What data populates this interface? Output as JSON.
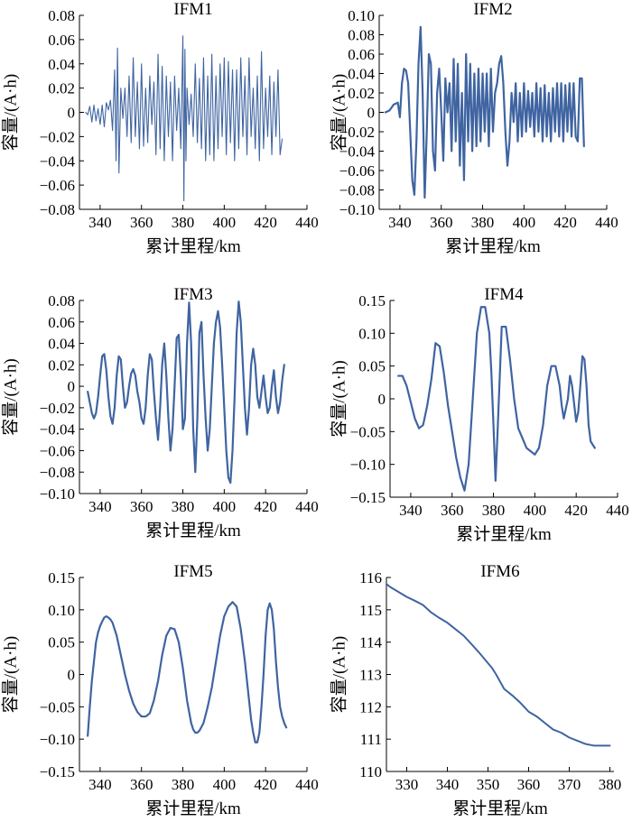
{
  "charts": [
    {
      "type": "line",
      "title": "IFM1",
      "xlabel": "累计里程/km",
      "ylabel": "容量/(A·h)",
      "xlim": [
        330,
        440
      ],
      "ylim": [
        -0.08,
        0.08
      ],
      "xticks": [
        340,
        360,
        380,
        400,
        420,
        440
      ],
      "yticks": [
        0.08,
        0.06,
        0.04,
        0.02,
        0,
        -0.02,
        -0.04,
        -0.06,
        -0.08
      ],
      "xtick_labels": [
        "340",
        "360",
        "380",
        "400",
        "420",
        "440"
      ],
      "ytick_labels": [
        "0.08",
        "0.06",
        "0.04",
        "0.02",
        "0",
        "−0.02",
        "−0.04",
        "−0.06",
        "−0.08"
      ],
      "line_color": "#3f64a1",
      "line_width": 1.1,
      "x": [
        333,
        334,
        335,
        336,
        337,
        338,
        339,
        340,
        341,
        342,
        343,
        344,
        345,
        346,
        347,
        347.7,
        348.4,
        349.1,
        350,
        351,
        352,
        353,
        354,
        355,
        356,
        357,
        358,
        359,
        360,
        361,
        362,
        363,
        364,
        365,
        366,
        367,
        368,
        369,
        370,
        371,
        372,
        373,
        374,
        375,
        376,
        377,
        378,
        379,
        380,
        380.5,
        381,
        381.5,
        382,
        383,
        384,
        385,
        386,
        387,
        388,
        389,
        390,
        391,
        392,
        393,
        394,
        395,
        396,
        397,
        398,
        399,
        400,
        401,
        402,
        403,
        404,
        405,
        406,
        407,
        408,
        409,
        410,
        411,
        412,
        413,
        414,
        415,
        416,
        417,
        418,
        419,
        420,
        421,
        422,
        423,
        424,
        425,
        426,
        427,
        428
      ],
      "y": [
        0,
        -0.002,
        0.005,
        -0.008,
        0.006,
        -0.007,
        0.003,
        -0.01,
        0.006,
        -0.012,
        0.008,
        0.002,
        0.01,
        -0.015,
        0.035,
        -0.04,
        0.053,
        -0.05,
        0.02,
        -0.005,
        0.02,
        -0.02,
        0.03,
        -0.025,
        0.045,
        -0.02,
        0.025,
        -0.03,
        0.04,
        -0.028,
        0.02,
        -0.025,
        0.03,
        -0.01,
        0.025,
        -0.035,
        0.048,
        -0.03,
        0.038,
        -0.04,
        0.03,
        -0.02,
        0.025,
        -0.04,
        0.03,
        -0.015,
        0.02,
        -0.03,
        0.063,
        -0.073,
        0.052,
        -0.04,
        0.02,
        -0.01,
        0.015,
        -0.02,
        0.04,
        -0.025,
        0.028,
        -0.03,
        0.045,
        -0.04,
        0.03,
        -0.035,
        0.048,
        -0.04,
        0.03,
        -0.03,
        0.04,
        -0.02,
        0.045,
        -0.035,
        0.042,
        -0.025,
        0.035,
        -0.04,
        0.035,
        -0.03,
        0.045,
        -0.02,
        0.03,
        -0.035,
        0.045,
        -0.02,
        0.02,
        -0.03,
        0.03,
        -0.04,
        0.05,
        -0.03,
        0.02,
        -0.02,
        0.03,
        -0.035,
        0.025,
        -0.02,
        0.035,
        -0.035,
        -0.022
      ]
    },
    {
      "type": "line",
      "title": "IFM2",
      "xlabel": "累计里程/km",
      "ylabel": "容量/(A·h)",
      "xlim": [
        330,
        440
      ],
      "ylim": [
        -0.1,
        0.1
      ],
      "xticks": [
        340,
        360,
        380,
        400,
        420,
        440
      ],
      "yticks": [
        0.1,
        0.08,
        0.06,
        0.04,
        0.02,
        0,
        -0.02,
        -0.04,
        -0.06,
        -0.08,
        -0.1
      ],
      "xtick_labels": [
        "340",
        "360",
        "380",
        "400",
        "420",
        "440"
      ],
      "ytick_labels": [
        "0.10",
        "0.08",
        "0.06",
        "0.04",
        "0.02",
        "0",
        "−0.02",
        "−0.04",
        "−0.06",
        "−0.08",
        "−0.10"
      ],
      "line_color": "#3f64a1",
      "line_width": 2.2,
      "x": [
        333,
        335,
        337,
        339,
        340,
        341,
        342,
        343,
        344,
        345,
        346,
        347,
        348,
        349,
        350,
        351,
        352,
        353,
        354,
        355,
        356,
        357,
        358,
        359,
        360,
        361,
        362,
        363,
        364,
        365,
        366,
        367,
        368,
        369,
        370,
        371,
        372,
        373,
        374,
        375,
        376,
        377,
        378,
        379,
        380,
        381,
        382,
        383,
        384,
        385,
        386,
        387,
        388,
        389,
        390,
        391,
        392,
        393,
        394,
        395,
        396,
        397,
        398,
        399,
        400,
        401,
        402,
        403,
        404,
        405,
        406,
        407,
        408,
        409,
        410,
        411,
        412,
        413,
        414,
        415,
        416,
        417,
        418,
        419,
        420,
        421,
        422,
        423,
        424,
        425,
        426,
        427,
        428,
        429
      ],
      "y": [
        0,
        0.002,
        0.008,
        0.01,
        -0.005,
        0.03,
        0.045,
        0.043,
        0.03,
        -0.02,
        -0.07,
        -0.085,
        -0.03,
        0.05,
        0.088,
        0.02,
        -0.088,
        -0.02,
        0.06,
        0.05,
        -0.04,
        -0.06,
        0.02,
        0.045,
        0.0,
        -0.05,
        0.035,
        0.0,
        0.03,
        -0.04,
        0.055,
        -0.03,
        0.05,
        -0.055,
        0.02,
        -0.07,
        0.06,
        -0.03,
        0.05,
        -0.04,
        0.04,
        -0.035,
        0.045,
        -0.03,
        0.04,
        -0.02,
        0.04,
        -0.035,
        0.045,
        -0.02,
        0.02,
        0.03,
        0.05,
        0.058,
        0.03,
        -0.02,
        -0.055,
        -0.03,
        0.02,
        -0.01,
        0.03,
        -0.03,
        0.02,
        -0.025,
        0.03,
        -0.02,
        0.022,
        -0.015,
        0.02,
        -0.025,
        0.03,
        -0.02,
        0.025,
        -0.03,
        0.028,
        -0.025,
        0.02,
        -0.03,
        0.025,
        -0.02,
        0.03,
        -0.025,
        0.03,
        -0.03,
        0.028,
        -0.02,
        0.03,
        -0.025,
        0.03,
        -0.025,
        -0.03,
        0.035,
        0.035,
        -0.035
      ]
    },
    {
      "type": "line",
      "title": "IFM3",
      "xlabel": "累计里程/km",
      "ylabel": "容量/(A·h)",
      "xlim": [
        330,
        440
      ],
      "ylim": [
        -0.1,
        0.08
      ],
      "xticks": [
        340,
        360,
        380,
        400,
        420,
        440
      ],
      "yticks": [
        0.08,
        0.06,
        0.04,
        0.02,
        0,
        -0.02,
        -0.04,
        -0.06,
        -0.08,
        -0.1
      ],
      "xtick_labels": [
        "340",
        "360",
        "380",
        "400",
        "420",
        "440"
      ],
      "ytick_labels": [
        "0.08",
        "0.06",
        "0.04",
        "0.02",
        "0",
        "−0.02",
        "−0.04",
        "−0.06",
        "−0.08",
        "−0.10"
      ],
      "line_color": "#3f64a1",
      "line_width": 2.2,
      "x": [
        334,
        335,
        336,
        337,
        338,
        339,
        340,
        341,
        342,
        343,
        344,
        345,
        346,
        347,
        348,
        349,
        350,
        351,
        352,
        353,
        354,
        355,
        356,
        357,
        358,
        359,
        360,
        361,
        362,
        363,
        364,
        365,
        366,
        367,
        368,
        369,
        370,
        371,
        372,
        373,
        374,
        375,
        376,
        377,
        378,
        379,
        380,
        381,
        382,
        383,
        384,
        385,
        386,
        387,
        388,
        389,
        390,
        391,
        392,
        393,
        394,
        395,
        396,
        397,
        398,
        399,
        400,
        401,
        402,
        403,
        404,
        405,
        406,
        407,
        408,
        409,
        410,
        411,
        412,
        413,
        414,
        415,
        416,
        417,
        418,
        419,
        420,
        421,
        422,
        423,
        424,
        425,
        426,
        427,
        428,
        429
      ],
      "y": [
        -0.005,
        -0.015,
        -0.025,
        -0.03,
        -0.025,
        -0.01,
        0.01,
        0.028,
        0.03,
        0.015,
        -0.01,
        -0.028,
        -0.035,
        -0.02,
        0.01,
        0.028,
        0.025,
        0.0,
        -0.02,
        -0.015,
        0.0,
        0.012,
        0.016,
        0.01,
        -0.005,
        -0.015,
        -0.03,
        -0.035,
        -0.02,
        0.01,
        0.03,
        0.025,
        -0.005,
        -0.03,
        -0.05,
        -0.02,
        0.02,
        0.04,
        0.01,
        -0.03,
        -0.06,
        -0.04,
        0.0,
        0.045,
        0.048,
        0.01,
        -0.04,
        -0.03,
        0.04,
        0.078,
        0.04,
        -0.04,
        -0.08,
        -0.03,
        0.05,
        0.06,
        0.01,
        -0.03,
        -0.06,
        -0.04,
        0.0,
        0.04,
        0.06,
        0.07,
        0.055,
        0.02,
        -0.02,
        -0.06,
        -0.085,
        -0.09,
        -0.06,
        -0.01,
        0.05,
        0.079,
        0.06,
        0.02,
        -0.02,
        -0.045,
        -0.02,
        0.02,
        0.035,
        0.02,
        -0.01,
        -0.02,
        -0.005,
        0.01,
        -0.01,
        -0.025,
        -0.02,
        0.0,
        0.015,
        -0.01,
        -0.025,
        -0.015,
        0.005,
        0.02
      ]
    },
    {
      "type": "line",
      "title": "IFM4",
      "xlabel": "累计里程/km",
      "ylabel": "容量/(A·h)",
      "xlim": [
        330,
        440
      ],
      "ylim": [
        -0.15,
        0.15
      ],
      "xticks": [
        340,
        360,
        380,
        400,
        420,
        440
      ],
      "yticks": [
        0.15,
        0.1,
        0.05,
        0,
        -0.05,
        -0.1,
        -0.15
      ],
      "xtick_labels": [
        "340",
        "360",
        "380",
        "400",
        "420",
        "440"
      ],
      "ytick_labels": [
        "0.15",
        "0.10",
        "0.05",
        "0",
        "−0.05",
        "−0.10",
        "−0.15"
      ],
      "line_color": "#3f64a1",
      "line_width": 2.2,
      "x": [
        334,
        336,
        338,
        340,
        342,
        344,
        346,
        348,
        350,
        352,
        354,
        356,
        358,
        360,
        362,
        364,
        366,
        368,
        370,
        372,
        374,
        376,
        378,
        379,
        380,
        381,
        382,
        384,
        386,
        388,
        390,
        392,
        394,
        396,
        398,
        400,
        402,
        404,
        406,
        408,
        410,
        412,
        413,
        414,
        416,
        417,
        418,
        420,
        421,
        422,
        423,
        424,
        425,
        426,
        427,
        428,
        429
      ],
      "y": [
        0.035,
        0.035,
        0.02,
        -0.005,
        -0.03,
        -0.045,
        -0.04,
        -0.01,
        0.03,
        0.085,
        0.08,
        0.04,
        -0.01,
        -0.05,
        -0.09,
        -0.12,
        -0.14,
        -0.1,
        0.0,
        0.1,
        0.14,
        0.14,
        0.1,
        0.04,
        -0.04,
        -0.125,
        -0.05,
        0.11,
        0.11,
        0.06,
        0.0,
        -0.045,
        -0.06,
        -0.075,
        -0.08,
        -0.085,
        -0.075,
        -0.04,
        0.02,
        0.05,
        0.05,
        0.02,
        -0.01,
        -0.03,
        0.0,
        0.035,
        0.02,
        -0.035,
        -0.02,
        0.02,
        0.065,
        0.06,
        0.02,
        -0.04,
        -0.065,
        -0.07,
        -0.075
      ]
    },
    {
      "type": "line",
      "title": "IFM5",
      "xlabel": "累计里程/km",
      "ylabel": "容量/(A·h)",
      "xlim": [
        330,
        440
      ],
      "ylim": [
        -0.15,
        0.15
      ],
      "xticks": [
        340,
        360,
        380,
        400,
        420,
        440
      ],
      "yticks": [
        0.15,
        0.1,
        0.05,
        0,
        -0.05,
        -0.1,
        -0.15
      ],
      "xtick_labels": [
        "340",
        "360",
        "380",
        "400",
        "420",
        "440"
      ],
      "ytick_labels": [
        "0.15",
        "0.10",
        "0.05",
        "0",
        "−0.05",
        "−0.10",
        "−0.15"
      ],
      "line_color": "#3f64a1",
      "line_width": 2.2,
      "x": [
        334,
        335,
        336,
        337,
        338,
        339,
        340,
        341,
        342,
        343,
        344,
        345,
        346,
        348,
        350,
        352,
        354,
        356,
        358,
        360,
        362,
        364,
        366,
        368,
        370,
        372,
        374,
        376,
        378,
        380,
        382,
        384,
        385,
        386,
        387,
        388,
        390,
        392,
        394,
        396,
        398,
        400,
        402,
        404,
        406,
        408,
        410,
        412,
        413,
        414,
        415,
        416,
        417,
        418,
        419,
        420,
        421,
        422,
        423,
        424,
        425,
        426,
        427,
        428,
        429,
        430
      ],
      "y": [
        -0.095,
        -0.05,
        -0.01,
        0.02,
        0.05,
        0.065,
        0.075,
        0.082,
        0.088,
        0.09,
        0.088,
        0.085,
        0.08,
        0.06,
        0.03,
        0.0,
        -0.025,
        -0.045,
        -0.058,
        -0.065,
        -0.065,
        -0.06,
        -0.04,
        -0.01,
        0.03,
        0.06,
        0.072,
        0.07,
        0.05,
        0.01,
        -0.04,
        -0.075,
        -0.085,
        -0.09,
        -0.09,
        -0.087,
        -0.075,
        -0.05,
        -0.02,
        0.02,
        0.06,
        0.09,
        0.105,
        0.112,
        0.105,
        0.07,
        0.02,
        -0.04,
        -0.07,
        -0.09,
        -0.105,
        -0.105,
        -0.09,
        -0.05,
        0.0,
        0.06,
        0.1,
        0.11,
        0.1,
        0.07,
        0.02,
        -0.02,
        -0.05,
        -0.065,
        -0.075,
        -0.082
      ]
    },
    {
      "type": "line",
      "title": "IFM6",
      "xlabel": "累计里程/km",
      "ylabel": "容量/(A·h)",
      "xlim": [
        325,
        381
      ],
      "ylim": [
        110,
        116
      ],
      "xticks": [
        330,
        340,
        350,
        360,
        370,
        380
      ],
      "yticks": [
        116,
        115,
        114,
        113,
        112,
        111,
        110
      ],
      "xtick_labels": [
        "330",
        "340",
        "350",
        "360",
        "370",
        "380"
      ],
      "ytick_labels": [
        "116",
        "115",
        "114",
        "113",
        "112",
        "111",
        "110"
      ],
      "line_color": "#3f64a1",
      "line_width": 2.0,
      "x": [
        325,
        326,
        328,
        330,
        332,
        334,
        336,
        338,
        340,
        342,
        344,
        346,
        348,
        350,
        351,
        352,
        354,
        356,
        358,
        360,
        362,
        364,
        366,
        368,
        370,
        372,
        374,
        376,
        378,
        380
      ],
      "y": [
        115.8,
        115.7,
        115.55,
        115.4,
        115.28,
        115.15,
        114.92,
        114.75,
        114.6,
        114.4,
        114.2,
        113.93,
        113.65,
        113.35,
        113.2,
        113.0,
        112.55,
        112.35,
        112.12,
        111.85,
        111.7,
        111.5,
        111.3,
        111.2,
        111.05,
        110.95,
        110.85,
        110.8,
        110.8,
        110.8
      ]
    }
  ]
}
